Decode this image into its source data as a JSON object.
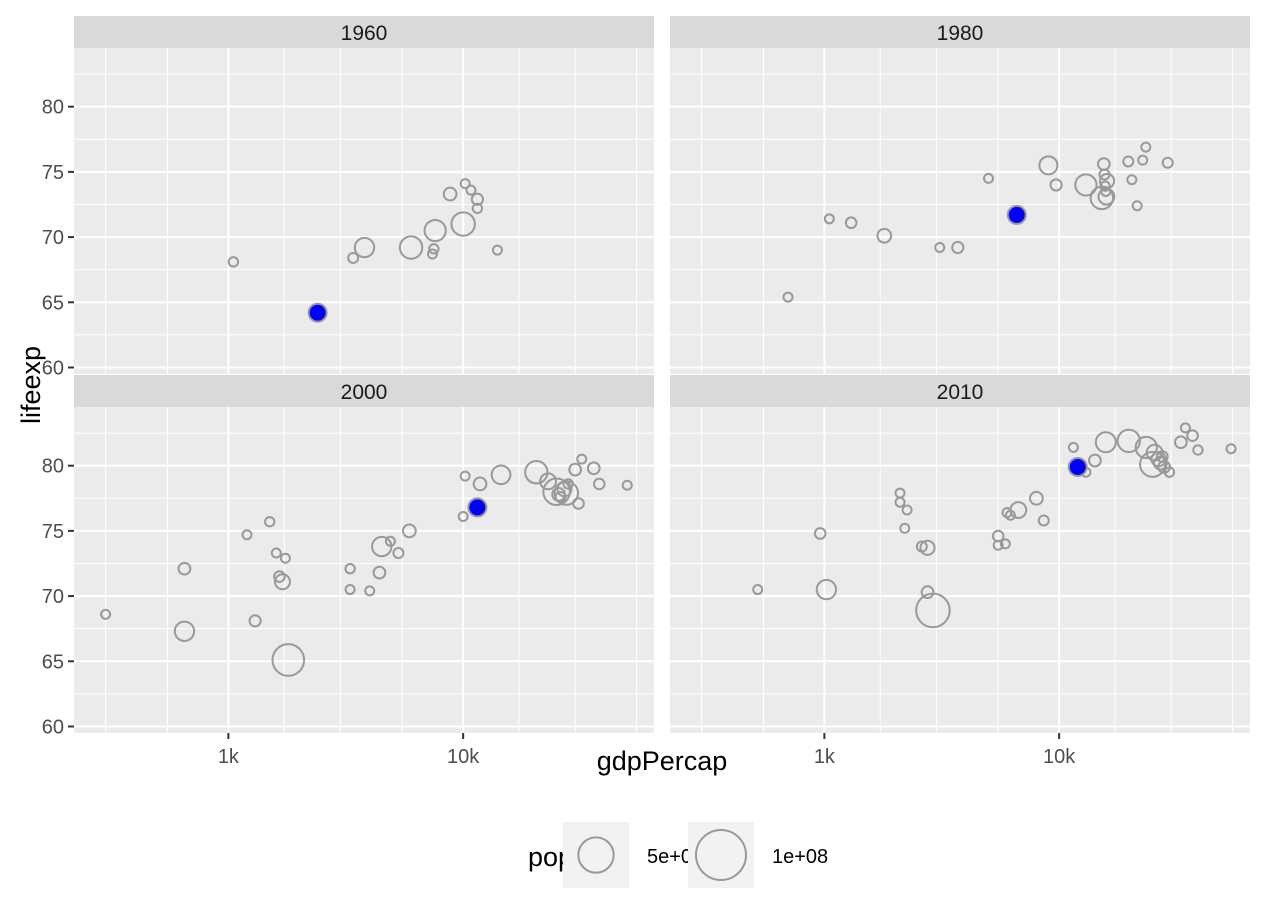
{
  "chart_data": {
    "type": "scatter",
    "facets": [
      "1960",
      "1980",
      "2000",
      "2010"
    ],
    "xlabel": "gdpPercap",
    "ylabel": "lifeexp",
    "x_scale": "log10",
    "xlim": [
      220,
      65000
    ],
    "ylim": [
      59.5,
      84.5
    ],
    "x_ticks": [
      1000,
      10000
    ],
    "x_tick_labels": [
      "1k",
      "10k"
    ],
    "y_ticks": [
      60,
      65,
      70,
      75,
      80
    ],
    "y_tick_labels": [
      "60",
      "65",
      "70",
      "75",
      "80"
    ],
    "grid": true,
    "legend": {
      "title": "pop",
      "position": "bottom",
      "items": [
        {
          "label": "5e+07",
          "value": 50000000
        },
        {
          "label": "1e+08",
          "value": 100000000
        }
      ]
    },
    "colors": {
      "panel_bg": "#ebebeb",
      "strip_bg": "#d9d9d9",
      "grid": "#ffffff",
      "point_stroke": "#999999",
      "highlight": "#0000ff"
    },
    "series": [
      {
        "facet": "1960",
        "points": [
          {
            "x": 1050,
            "y": 68.1,
            "pop": 3500000
          },
          {
            "x": 2400,
            "y": 64.2,
            "pop": 3000000,
            "highlight": true
          },
          {
            "x": 3400,
            "y": 68.4,
            "pop": 4000000
          },
          {
            "x": 3800,
            "y": 69.2,
            "pop": 15000000
          },
          {
            "x": 6000,
            "y": 69.2,
            "pop": 20000000
          },
          {
            "x": 7400,
            "y": 68.7,
            "pop": 3000000
          },
          {
            "x": 7500,
            "y": 69.1,
            "pop": 3500000
          },
          {
            "x": 7600,
            "y": 70.5,
            "pop": 18000000
          },
          {
            "x": 8800,
            "y": 73.3,
            "pop": 6500000
          },
          {
            "x": 10000,
            "y": 71.0,
            "pop": 22000000
          },
          {
            "x": 10200,
            "y": 74.1,
            "pop": 1500000
          },
          {
            "x": 10800,
            "y": 73.6,
            "pop": 1800000
          },
          {
            "x": 11500,
            "y": 72.9,
            "pop": 5000000
          },
          {
            "x": 11500,
            "y": 72.2,
            "pop": 3500000
          },
          {
            "x": 14000,
            "y": 69.0,
            "pop": 1500000
          }
        ]
      },
      {
        "facet": "1980",
        "points": [
          {
            "x": 700,
            "y": 65.4,
            "pop": 2500000
          },
          {
            "x": 1050,
            "y": 71.4,
            "pop": 2500000
          },
          {
            "x": 1300,
            "y": 71.1,
            "pop": 4500000
          },
          {
            "x": 1800,
            "y": 70.1,
            "pop": 7500000
          },
          {
            "x": 3100,
            "y": 69.2,
            "pop": 2500000
          },
          {
            "x": 3700,
            "y": 69.2,
            "pop": 5000000
          },
          {
            "x": 5000,
            "y": 74.5,
            "pop": 1500000
          },
          {
            "x": 6600,
            "y": 71.7,
            "pop": 3000000,
            "highlight": true
          },
          {
            "x": 9000,
            "y": 75.5,
            "pop": 13000000
          },
          {
            "x": 9700,
            "y": 74.0,
            "pop": 5000000
          },
          {
            "x": 13000,
            "y": 74.0,
            "pop": 18000000
          },
          {
            "x": 15200,
            "y": 73.0,
            "pop": 20000000
          },
          {
            "x": 15500,
            "y": 75.6,
            "pop": 5500000
          },
          {
            "x": 15600,
            "y": 74.8,
            "pop": 4000000
          },
          {
            "x": 15700,
            "y": 73.9,
            "pop": 3500000
          },
          {
            "x": 15800,
            "y": 73.5,
            "pop": 2500000
          },
          {
            "x": 15900,
            "y": 73.1,
            "pop": 10000000
          },
          {
            "x": 16000,
            "y": 74.3,
            "pop": 8000000
          },
          {
            "x": 19700,
            "y": 75.8,
            "pop": 4000000
          },
          {
            "x": 20400,
            "y": 74.4,
            "pop": 3000000
          },
          {
            "x": 21500,
            "y": 72.4,
            "pop": 1500000
          },
          {
            "x": 22700,
            "y": 75.9,
            "pop": 3000000
          },
          {
            "x": 23400,
            "y": 76.9,
            "pop": 1500000
          },
          {
            "x": 29000,
            "y": 75.7,
            "pop": 4000000
          }
        ]
      },
      {
        "facet": "2000",
        "points": [
          {
            "x": 300,
            "y": 68.6,
            "pop": 2500000
          },
          {
            "x": 650,
            "y": 72.1,
            "pop": 5500000
          },
          {
            "x": 650,
            "y": 67.3,
            "pop": 15000000
          },
          {
            "x": 1200,
            "y": 74.7,
            "pop": 2500000
          },
          {
            "x": 1300,
            "y": 68.1,
            "pop": 5000000
          },
          {
            "x": 1500,
            "y": 75.7,
            "pop": 3500000
          },
          {
            "x": 1600,
            "y": 73.3,
            "pop": 1500000
          },
          {
            "x": 1650,
            "y": 71.5,
            "pop": 4500000
          },
          {
            "x": 1700,
            "y": 71.1,
            "pop": 9000000
          },
          {
            "x": 1750,
            "y": 72.9,
            "pop": 2500000
          },
          {
            "x": 1800,
            "y": 65.1,
            "pop": 40000000
          },
          {
            "x": 3300,
            "y": 72.1,
            "pop": 3500000
          },
          {
            "x": 3300,
            "y": 70.5,
            "pop": 2500000
          },
          {
            "x": 4000,
            "y": 70.4,
            "pop": 2000000
          },
          {
            "x": 4400,
            "y": 71.8,
            "pop": 5500000
          },
          {
            "x": 4500,
            "y": 73.8,
            "pop": 15000000
          },
          {
            "x": 4900,
            "y": 74.2,
            "pop": 3000000
          },
          {
            "x": 5300,
            "y": 73.3,
            "pop": 4000000
          },
          {
            "x": 5900,
            "y": 75.0,
            "pop": 6500000
          },
          {
            "x": 10000,
            "y": 76.1,
            "pop": 2500000
          },
          {
            "x": 10200,
            "y": 79.2,
            "pop": 1500000
          },
          {
            "x": 11500,
            "y": 76.8,
            "pop": 3500000,
            "highlight": true
          },
          {
            "x": 11800,
            "y": 78.6,
            "pop": 6500000
          },
          {
            "x": 14500,
            "y": 79.3,
            "pop": 14000000
          },
          {
            "x": 20500,
            "y": 79.5,
            "pop": 20000000
          },
          {
            "x": 23000,
            "y": 78.8,
            "pop": 10000000
          },
          {
            "x": 25000,
            "y": 78.0,
            "pop": 28000000
          },
          {
            "x": 25500,
            "y": 77.8,
            "pop": 6500000
          },
          {
            "x": 26000,
            "y": 77.6,
            "pop": 4000000
          },
          {
            "x": 27000,
            "y": 78.2,
            "pop": 8000000
          },
          {
            "x": 27500,
            "y": 77.9,
            "pop": 22000000
          },
          {
            "x": 28000,
            "y": 78.6,
            "pop": 3500000
          },
          {
            "x": 30000,
            "y": 79.7,
            "pop": 5500000
          },
          {
            "x": 31000,
            "y": 77.1,
            "pop": 4500000
          },
          {
            "x": 32000,
            "y": 80.5,
            "pop": 2000000
          },
          {
            "x": 36000,
            "y": 79.8,
            "pop": 5500000
          },
          {
            "x": 38000,
            "y": 78.6,
            "pop": 4500000
          },
          {
            "x": 50000,
            "y": 78.5,
            "pop": 1500000
          }
        ]
      },
      {
        "facet": "2010",
        "points": [
          {
            "x": 520,
            "y": 70.5,
            "pop": 3000000
          },
          {
            "x": 960,
            "y": 74.8,
            "pop": 4500000
          },
          {
            "x": 1020,
            "y": 70.5,
            "pop": 15000000
          },
          {
            "x": 2100,
            "y": 77.9,
            "pop": 2500000
          },
          {
            "x": 2100,
            "y": 77.2,
            "pop": 2500000
          },
          {
            "x": 2250,
            "y": 76.6,
            "pop": 1500000
          },
          {
            "x": 2200,
            "y": 75.2,
            "pop": 2500000
          },
          {
            "x": 2600,
            "y": 73.8,
            "pop": 4000000
          },
          {
            "x": 2750,
            "y": 73.7,
            "pop": 8000000
          },
          {
            "x": 2750,
            "y": 70.3,
            "pop": 5500000
          },
          {
            "x": 2900,
            "y": 68.9,
            "pop": 45000000
          },
          {
            "x": 5500,
            "y": 74.6,
            "pop": 4500000
          },
          {
            "x": 5500,
            "y": 73.9,
            "pop": 2500000
          },
          {
            "x": 5900,
            "y": 74.0,
            "pop": 2500000
          },
          {
            "x": 6000,
            "y": 76.4,
            "pop": 2500000
          },
          {
            "x": 6200,
            "y": 76.2,
            "pop": 3000000
          },
          {
            "x": 6700,
            "y": 76.6,
            "pop": 10000000
          },
          {
            "x": 8000,
            "y": 77.5,
            "pop": 6500000
          },
          {
            "x": 8600,
            "y": 75.8,
            "pop": 4000000
          },
          {
            "x": 11500,
            "y": 81.4,
            "pop": 1500000
          },
          {
            "x": 12000,
            "y": 79.9,
            "pop": 3000000,
            "highlight": true
          },
          {
            "x": 13000,
            "y": 79.5,
            "pop": 2500000
          },
          {
            "x": 14200,
            "y": 80.4,
            "pop": 5500000
          },
          {
            "x": 15800,
            "y": 81.8,
            "pop": 16000000
          },
          {
            "x": 19800,
            "y": 81.9,
            "pop": 20000000
          },
          {
            "x": 23500,
            "y": 81.4,
            "pop": 18000000
          },
          {
            "x": 25000,
            "y": 80.1,
            "pop": 25000000
          },
          {
            "x": 25500,
            "y": 81.0,
            "pop": 10000000
          },
          {
            "x": 26500,
            "y": 80.5,
            "pop": 8000000
          },
          {
            "x": 27000,
            "y": 80.2,
            "pop": 6500000
          },
          {
            "x": 27500,
            "y": 80.7,
            "pop": 4500000
          },
          {
            "x": 28000,
            "y": 79.9,
            "pop": 5500000
          },
          {
            "x": 29500,
            "y": 79.5,
            "pop": 3500000
          },
          {
            "x": 33000,
            "y": 81.8,
            "pop": 5500000
          },
          {
            "x": 34500,
            "y": 82.9,
            "pop": 1500000
          },
          {
            "x": 37000,
            "y": 82.3,
            "pop": 4500000
          },
          {
            "x": 39000,
            "y": 81.2,
            "pop": 3500000
          },
          {
            "x": 54000,
            "y": 81.3,
            "pop": 1500000
          }
        ]
      }
    ]
  }
}
